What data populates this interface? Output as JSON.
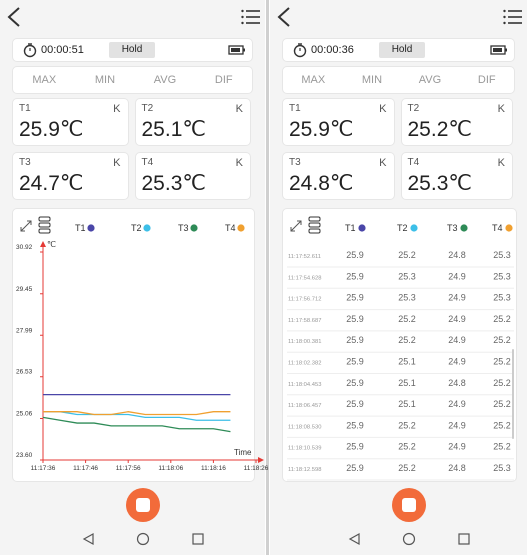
{
  "left": {
    "timer": "00:00:51",
    "hold": "Hold",
    "tabs": [
      "MAX",
      "MIN",
      "AVG",
      "DIF"
    ],
    "cards": [
      {
        "name": "T1",
        "unit": "K",
        "value": "25.9℃"
      },
      {
        "name": "T2",
        "unit": "K",
        "value": "25.1℃"
      },
      {
        "name": "T3",
        "unit": "K",
        "value": "24.7℃"
      },
      {
        "name": "T4",
        "unit": "K",
        "value": "25.3℃"
      }
    ]
  },
  "right": {
    "timer": "00:00:36",
    "hold": "Hold",
    "tabs": [
      "MAX",
      "MIN",
      "AVG",
      "DIF"
    ],
    "cards": [
      {
        "name": "T1",
        "unit": "K",
        "value": "25.9℃"
      },
      {
        "name": "T2",
        "unit": "K",
        "value": "25.2℃"
      },
      {
        "name": "T3",
        "unit": "K",
        "value": "24.8℃"
      },
      {
        "name": "T4",
        "unit": "K",
        "value": "25.3℃"
      }
    ],
    "table": {
      "columns": [
        "T1",
        "T2",
        "T3",
        "T4"
      ],
      "rows": [
        [
          "11:17:52.611",
          "25.9",
          "25.2",
          "24.8",
          "25.3"
        ],
        [
          "11:17:54.628",
          "25.9",
          "25.3",
          "24.9",
          "25.3"
        ],
        [
          "11:17:56.712",
          "25.9",
          "25.3",
          "24.9",
          "25.3"
        ],
        [
          "11:17:58.687",
          "25.9",
          "25.2",
          "24.9",
          "25.2"
        ],
        [
          "11:18:00.381",
          "25.9",
          "25.2",
          "24.9",
          "25.2"
        ],
        [
          "11:18:02.382",
          "25.9",
          "25.1",
          "24.9",
          "25.2"
        ],
        [
          "11:18:04.453",
          "25.9",
          "25.1",
          "24.8",
          "25.2"
        ],
        [
          "11:18:06.457",
          "25.9",
          "25.1",
          "24.9",
          "25.2"
        ],
        [
          "11:18:08.530",
          "25.9",
          "25.2",
          "24.9",
          "25.2"
        ],
        [
          "11:18:10.539",
          "25.9",
          "25.2",
          "24.9",
          "25.2"
        ],
        [
          "11:18:12.598",
          "25.9",
          "25.2",
          "24.8",
          "25.3"
        ]
      ]
    }
  },
  "chart_data": {
    "type": "line",
    "ylabel": "℃",
    "xlabel": "Time",
    "x": [
      "11:17:36",
      "11:17:40",
      "11:17:44",
      "11:17:48",
      "11:17:52",
      "11:17:56",
      "11:18:00",
      "11:18:04",
      "11:18:08",
      "11:18:12",
      "11:18:16",
      "11:18:20"
    ],
    "xlim": [
      "11:17:36",
      "11:18:26"
    ],
    "xticks": [
      "11:17:36",
      "11:17:46",
      "11:17:56",
      "11:18:06",
      "11:18:16",
      "11:18:26"
    ],
    "ylim": [
      23.6,
      30.92
    ],
    "yticks": [
      30.92,
      29.45,
      27.99,
      26.53,
      25.06,
      {
        "value": 23.6,
        "label": "23.60"
      }
    ],
    "axis_color": "#e53935",
    "series": [
      {
        "name": "T1",
        "color": "#4a46a8",
        "values": [
          25.9,
          25.9,
          25.9,
          25.9,
          25.9,
          25.9,
          25.9,
          25.9,
          25.9,
          25.9,
          25.9,
          25.9
        ]
      },
      {
        "name": "T2",
        "color": "#3cbfe8",
        "values": [
          25.3,
          25.3,
          25.2,
          25.2,
          25.2,
          25.2,
          25.1,
          25.1,
          25.1,
          25.0,
          25.0,
          25.0
        ]
      },
      {
        "name": "T3",
        "color": "#2e8b57",
        "values": [
          25.1,
          25.0,
          24.9,
          24.9,
          24.8,
          24.8,
          24.8,
          24.8,
          24.7,
          24.7,
          24.7,
          24.6
        ]
      },
      {
        "name": "T4",
        "color": "#f0a030",
        "values": [
          25.3,
          25.3,
          25.3,
          25.2,
          25.2,
          25.3,
          25.2,
          25.2,
          25.2,
          25.2,
          25.3,
          25.3
        ]
      }
    ]
  }
}
